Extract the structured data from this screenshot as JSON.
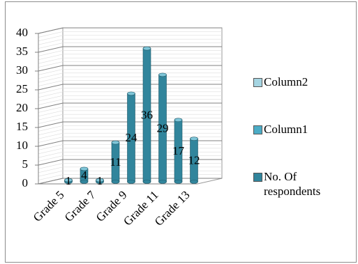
{
  "chart_data": {
    "type": "bar",
    "categories": [
      "Grade 5",
      null,
      "Grade 7",
      null,
      "Grade 9",
      null,
      "Grade 11",
      null,
      "Grade 13"
    ],
    "series": [
      {
        "name": "Column2",
        "color": "#a5d5e2",
        "values": [
          null,
          null,
          null,
          null,
          null,
          null,
          null,
          null,
          null
        ]
      },
      {
        "name": "Column1",
        "color": "#4bacc6",
        "values": [
          null,
          null,
          null,
          null,
          null,
          null,
          null,
          null,
          null
        ]
      },
      {
        "name": "No. Of respondents",
        "color": "#31859c",
        "values": [
          1,
          4,
          1,
          11,
          24,
          36,
          29,
          17,
          12
        ]
      }
    ],
    "ylim": [
      0,
      40
    ],
    "yticks": [
      0,
      5,
      10,
      15,
      20,
      25,
      30,
      35,
      40
    ],
    "grid": true
  }
}
